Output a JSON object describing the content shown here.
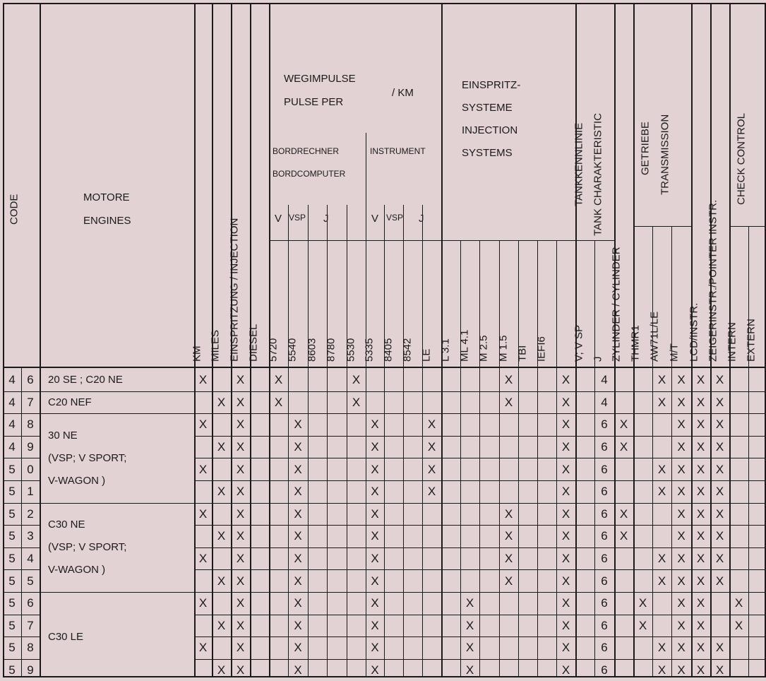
{
  "header": {
    "code": "CODE",
    "motore": "MOTORE",
    "engines": "ENGINES",
    "km": "KM",
    "miles": "MILES",
    "einspritzung": "EINSPRITZUNG / INJECTION",
    "diesel": "DIESEL",
    "wegimpulse": "WEGIMPULSE",
    "pulse_per": "PULSE PER",
    "per_km": "/ KM",
    "bordrechner": "BORDRECHNER",
    "bordcomputer": "BORDCOMPUTER",
    "instrument": "INSTRUMENT",
    "v": "V",
    "vsp": "VSP",
    "j": "J",
    "einspritz": "EINSPRITZ-",
    "systeme": "SYSTEME",
    "injection": "INJECTION",
    "systems": "SYSTEMS",
    "tankkennlinie": "TANKKENNLINIE",
    "tank_char": "TANK CHARAKTERISTIC",
    "vvsp": "V; V SP",
    "zylinder": "ZYLINDER / CYLINDER",
    "getriebe": "GETRIEBE",
    "transmission": "TRANSMISSION",
    "lcd": "LCD/INSTR.",
    "zeiger": "ZEIGERINSTR./POINTER INSTR.",
    "check": "CHECK CONTROL",
    "sub": [
      "5720",
      "5540",
      "8603",
      "8780",
      "5530",
      "5335",
      "8405",
      "8542",
      "LE",
      "L 3.1",
      "ML 4.1",
      "M 2.5",
      "M 1.5",
      "TBI",
      "IEFI6"
    ],
    "thmr1": "THMR1",
    "aw71": "AW71L/LE",
    "mt": "M/T",
    "intern": "INTERN",
    "extern": "EXTERN"
  },
  "groups": [
    {
      "engine": [
        "20 SE ; C20 NE"
      ]
    },
    {
      "engine": [
        "C20 NEF"
      ]
    },
    {
      "engine": [
        "30 NE",
        "(VSP; V SPORT;",
        "V-WAGON )"
      ]
    },
    {
      "engine": [
        "C30 NE",
        "(VSP; V SPORT;",
        "V-WAGON )"
      ]
    },
    {
      "engine": [
        "C30 LE"
      ]
    }
  ],
  "rows": [
    {
      "c1": "4",
      "c2": "6",
      "v": {
        "km": "X",
        "inj": "X",
        "p5720": "X",
        "i5530": "X",
        "m15": "X",
        "vvsp": "X",
        "cyl": "4",
        "mt": "X",
        "lcd": "X",
        "zeig": "X",
        "intern": "X"
      }
    },
    {
      "c1": "4",
      "c2": "7",
      "v": {
        "miles": "X",
        "inj": "X",
        "p5720": "X",
        "i5530": "X",
        "m15": "X",
        "vvsp": "X",
        "cyl": "4",
        "mt": "X",
        "lcd": "X",
        "zeig": "X",
        "intern": "X"
      }
    },
    {
      "c1": "4",
      "c2": "8",
      "v": {
        "km": "X",
        "inj": "X",
        "p5540": "X",
        "i5335": "X",
        "le": "X",
        "vvsp": "X",
        "cyl": "6",
        "thmr1": "X",
        "lcd": "X",
        "zeig": "X",
        "intern": "X"
      }
    },
    {
      "c1": "4",
      "c2": "9",
      "v": {
        "miles": "X",
        "inj": "X",
        "p5540": "X",
        "i5335": "X",
        "le": "X",
        "vvsp": "X",
        "cyl": "6",
        "thmr1": "X",
        "lcd": "X",
        "zeig": "X",
        "intern": "X"
      }
    },
    {
      "c1": "5",
      "c2": "0",
      "v": {
        "km": "X",
        "inj": "X",
        "p5540": "X",
        "i5335": "X",
        "le": "X",
        "vvsp": "X",
        "cyl": "6",
        "mt": "X",
        "lcd": "X",
        "zeig": "X",
        "intern": "X"
      }
    },
    {
      "c1": "5",
      "c2": "1",
      "v": {
        "miles": "X",
        "inj": "X",
        "p5540": "X",
        "i5335": "X",
        "le": "X",
        "vvsp": "X",
        "cyl": "6",
        "mt": "X",
        "lcd": "X",
        "zeig": "X",
        "intern": "X"
      }
    },
    {
      "c1": "5",
      "c2": "2",
      "v": {
        "km": "X",
        "inj": "X",
        "p5540": "X",
        "i5335": "X",
        "m15": "X",
        "vvsp": "X",
        "cyl": "6",
        "thmr1": "X",
        "lcd": "X",
        "zeig": "X",
        "intern": "X"
      }
    },
    {
      "c1": "5",
      "c2": "3",
      "v": {
        "miles": "X",
        "inj": "X",
        "p5540": "X",
        "i5335": "X",
        "m15": "X",
        "vvsp": "X",
        "cyl": "6",
        "thmr1": "X",
        "lcd": "X",
        "zeig": "X",
        "intern": "X"
      }
    },
    {
      "c1": "5",
      "c2": "4",
      "v": {
        "km": "X",
        "inj": "X",
        "p5540": "X",
        "i5335": "X",
        "m15": "X",
        "vvsp": "X",
        "cyl": "6",
        "mt": "X",
        "lcd": "X",
        "zeig": "X",
        "intern": "X"
      }
    },
    {
      "c1": "5",
      "c2": "5",
      "v": {
        "miles": "X",
        "inj": "X",
        "p5540": "X",
        "i5335": "X",
        "m15": "X",
        "vvsp": "X",
        "cyl": "6",
        "mt": "X",
        "lcd": "X",
        "zeig": "X",
        "intern": "X"
      }
    },
    {
      "c1": "5",
      "c2": "6",
      "v": {
        "km": "X",
        "inj": "X",
        "p5540": "X",
        "i5335": "X",
        "ml41": "X",
        "vvsp": "X",
        "cyl": "6",
        "aw71": "X",
        "lcd": "X",
        "zeig": "X",
        "extern": "X"
      }
    },
    {
      "c1": "5",
      "c2": "7",
      "v": {
        "miles": "X",
        "inj": "X",
        "p5540": "X",
        "i5335": "X",
        "ml41": "X",
        "vvsp": "X",
        "cyl": "6",
        "aw71": "X",
        "lcd": "X",
        "zeig": "X",
        "extern": "X"
      }
    },
    {
      "c1": "5",
      "c2": "8",
      "v": {
        "km": "X",
        "inj": "X",
        "p5540": "X",
        "i5335": "X",
        "ml41": "X",
        "vvsp": "X",
        "cyl": "6",
        "mt": "X",
        "lcd": "X",
        "zeig": "X",
        "intern": "X"
      }
    },
    {
      "c1": "5",
      "c2": "9",
      "v": {
        "miles": "X",
        "inj": "X",
        "p5540": "X",
        "i5335": "X",
        "ml41": "X",
        "vvsp": "X",
        "cyl": "6",
        "mt": "X",
        "lcd": "X",
        "zeig": "X",
        "intern": "X"
      }
    }
  ]
}
